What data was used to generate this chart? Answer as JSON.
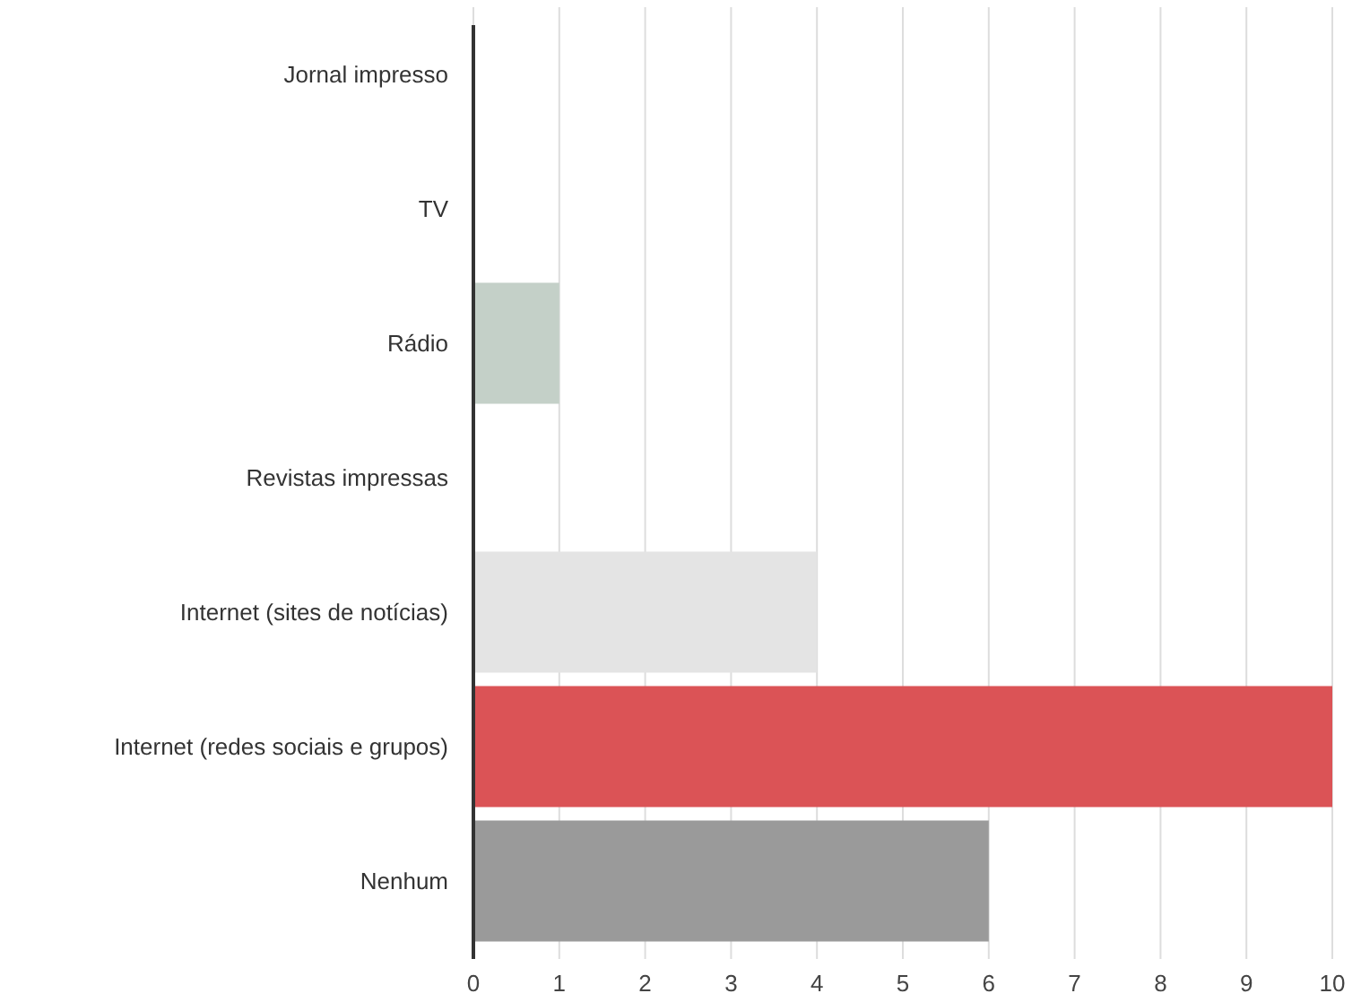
{
  "chart_data": {
    "type": "bar",
    "orientation": "horizontal",
    "categories": [
      "Jornal impresso",
      "TV",
      "Rádio",
      "Revistas impressas",
      "Internet (sites de notícias)",
      "Internet (redes sociais e grupos)",
      "Nenhum"
    ],
    "values": [
      0,
      0,
      1,
      0,
      4,
      10,
      6
    ],
    "colors": [
      "#c4d0c8",
      "#c4d0c8",
      "#c4d0c8",
      "#e4e4e4",
      "#e4e4e4",
      "#db5356",
      "#9a9a9a"
    ],
    "xlim": [
      0,
      10
    ],
    "xticks": [
      0,
      1,
      2,
      3,
      4,
      5,
      6,
      7,
      8,
      9,
      10
    ],
    "grid": "x"
  }
}
